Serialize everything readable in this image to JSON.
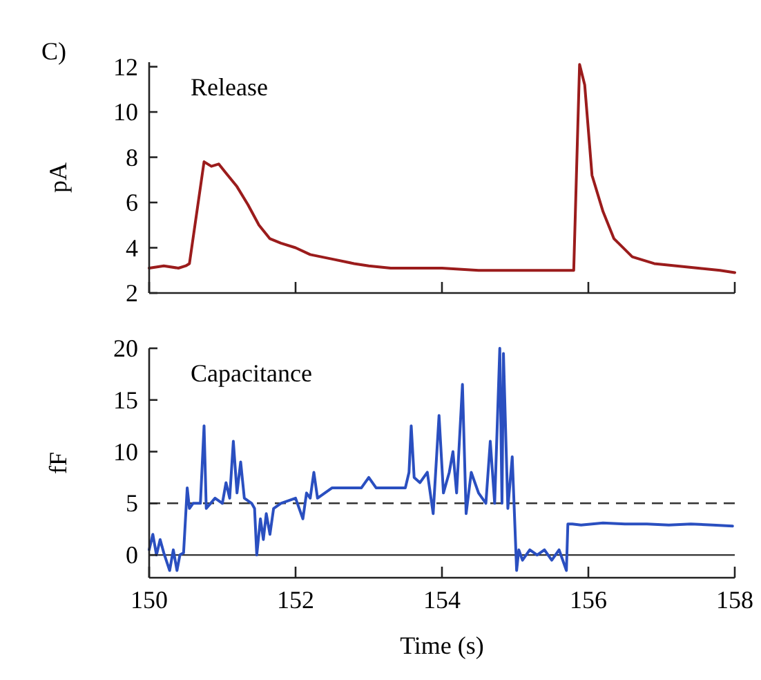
{
  "chart_data": [
    {
      "type": "line",
      "title": "Release",
      "ylabel": "pA",
      "annotations": [
        "C)"
      ],
      "xlim": [
        150,
        158
      ],
      "xticks": [
        150,
        152,
        154,
        156,
        158
      ],
      "ylim": [
        2,
        12.2
      ],
      "yticks": [
        2,
        4,
        6,
        8,
        10,
        12
      ],
      "tick_labels": "y",
      "grid": false,
      "marker": "none",
      "line_style": "solid",
      "series": [
        {
          "color": "#9b1c1c",
          "x": [
            150,
            150.2,
            150.4,
            150.5,
            150.55,
            150.75,
            150.85,
            150.95,
            151.05,
            151.2,
            151.35,
            151.5,
            151.65,
            151.8,
            152.0,
            152.2,
            152.5,
            152.8,
            153.0,
            153.3,
            153.6,
            154.0,
            154.5,
            155.0,
            155.5,
            155.8,
            155.88,
            155.95,
            156.05,
            156.2,
            156.35,
            156.6,
            156.9,
            157.2,
            157.5,
            157.8,
            158
          ],
          "values": [
            3.1,
            3.2,
            3.1,
            3.2,
            3.3,
            7.8,
            7.6,
            7.7,
            7.3,
            6.7,
            5.9,
            5.0,
            4.4,
            4.2,
            4.0,
            3.7,
            3.5,
            3.3,
            3.2,
            3.1,
            3.1,
            3.1,
            3.0,
            3.0,
            3.0,
            3.0,
            12.1,
            11.2,
            7.2,
            5.6,
            4.4,
            3.6,
            3.3,
            3.2,
            3.1,
            3.0,
            2.9
          ]
        }
      ]
    },
    {
      "type": "line",
      "title": "Capacitance",
      "xlabel": "Time (s)",
      "ylabel": "fF",
      "xlim": [
        150,
        158
      ],
      "xticks": [
        150,
        152,
        154,
        156,
        158
      ],
      "ylim": [
        -2.2,
        20
      ],
      "yticks": [
        0,
        5,
        10,
        15,
        20
      ],
      "grid": false,
      "marker": "none",
      "line_style": "solid",
      "ref_lines": [
        {
          "axis": "y",
          "value": 5,
          "line_style": "dashed",
          "color": "#333333"
        },
        {
          "axis": "y",
          "value": 0,
          "line_style": "solid",
          "color": "#333333"
        }
      ],
      "series": [
        {
          "color": "#2a4fc0",
          "x": [
            150,
            150.05,
            150.1,
            150.15,
            150.2,
            150.28,
            150.33,
            150.38,
            150.42,
            150.47,
            150.52,
            150.55,
            150.6,
            150.7,
            150.75,
            150.78,
            150.9,
            151.0,
            151.05,
            151.1,
            151.15,
            151.2,
            151.25,
            151.3,
            151.4,
            151.44,
            151.47,
            151.52,
            151.56,
            151.6,
            151.65,
            151.7,
            151.8,
            152.0,
            152.05,
            152.1,
            152.15,
            152.2,
            152.25,
            152.3,
            152.5,
            152.7,
            152.9,
            153.0,
            153.1,
            153.3,
            153.5,
            153.55,
            153.58,
            153.62,
            153.7,
            153.8,
            153.88,
            153.96,
            154.02,
            154.1,
            154.15,
            154.2,
            154.28,
            154.33,
            154.4,
            154.5,
            154.6,
            154.66,
            154.72,
            154.79,
            154.82,
            154.84,
            154.9,
            154.96,
            155.02,
            155.05,
            155.1,
            155.2,
            155.3,
            155.4,
            155.5,
            155.6,
            155.7,
            155.72,
            155.78,
            155.9,
            156.2,
            156.5,
            156.8,
            157.1,
            157.4,
            157.7,
            157.97
          ],
          "values": [
            0.5,
            2,
            0,
            1.5,
            0.2,
            -1.5,
            0.5,
            -1.5,
            0,
            0.2,
            6.5,
            4.5,
            5,
            5,
            12.5,
            4.5,
            5.5,
            5,
            7,
            5.5,
            11,
            6,
            9,
            5.5,
            5,
            4.5,
            0,
            3.5,
            1.5,
            4,
            2,
            4.5,
            5,
            5.5,
            4.5,
            3.5,
            6,
            5.5,
            8,
            5.5,
            6.5,
            6.5,
            6.5,
            7.5,
            6.5,
            6.5,
            6.5,
            8,
            12.5,
            7.5,
            7,
            8,
            4,
            13.5,
            6,
            8,
            10,
            6,
            16.5,
            4,
            8,
            6,
            5,
            11,
            5,
            20,
            5,
            19.5,
            4.5,
            9.5,
            -1.5,
            0.5,
            -0.5,
            0.5,
            0,
            0.5,
            -0.5,
            0.5,
            -1.5,
            3,
            3,
            2.9,
            3.1,
            3,
            3,
            2.9,
            3,
            2.9,
            2.8
          ]
        }
      ]
    }
  ]
}
